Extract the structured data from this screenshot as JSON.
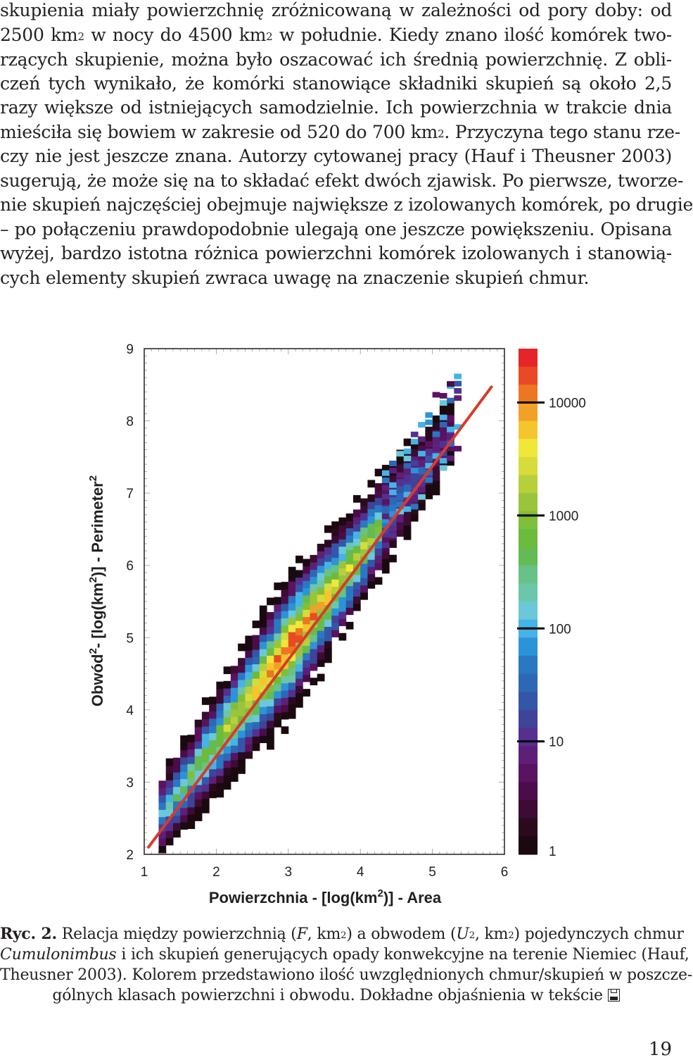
{
  "paragraph": {
    "l1": "skupienia miały powierzchnię zróżnicowaną w zależności od pory doby: od",
    "l2a": "2500 km",
    "l2b": "2",
    "l2c": " w nocy do 4500 km",
    "l2d": "2",
    "l2e": " w południe. Kiedy znano ilość komórek two-",
    "l3": "rzących skupienie, można było oszacować ich średnią powierzchnię. Z obli-",
    "l4": "czeń tych wynikało, że komórki stanowiące składniki skupień są około 2,5",
    "l5": "razy większe od istniejących samodzielnie. Ich powierzchnia w trakcie dnia",
    "l6a": "mieściła się bowiem w zakresie od 520 do 700 km",
    "l6b": "2",
    "l6c": ". Przyczyna tego stanu rze-",
    "l7": "czy nie jest jeszcze znana. Autorzy cytowanej pracy (Hauf i Theusner 2003)",
    "l8": "sugerują, że może się na to składać efekt dwóch zjawisk. Po pierwsze, tworze-",
    "l9": "nie skupień najczęściej obejmuje największe z izolowanych komórek, po drugie",
    "l10": "– po połączeniu prawdopodobnie ulegają one jeszcze powiększeniu. Opisana",
    "l11": "wyżej, bardzo istotna różnica powierzchni komórek izolowanych i stanowią-",
    "l12": "cych elementy skupień zwraca uwagę na znaczenie skupień chmur."
  },
  "chart_data": {
    "type": "heatmap",
    "title": "",
    "xlabel_pre": "Powierzchnia - [log(km",
    "xlabel_sup": "2",
    "xlabel_post": ")] - Area",
    "ylabel_pre": "Obwód",
    "ylabel_sup1": "2",
    "ylabel_mid": "- [log(km",
    "ylabel_sup2": "2",
    "ylabel_post": ")] - Perimeter",
    "ylabel_sup3": "2",
    "xlim": [
      1,
      6
    ],
    "ylim": [
      2,
      9
    ],
    "xticks": [
      "1",
      "2",
      "3",
      "4",
      "5",
      "6"
    ],
    "yticks": [
      "2",
      "3",
      "4",
      "5",
      "6",
      "7",
      "8",
      "9"
    ],
    "fit_line": {
      "x": [
        1.06,
        5.82
      ],
      "y": [
        2.1,
        8.47
      ],
      "color": "#d93a2b"
    },
    "density": {
      "description_of_band": "count of clouds per class of area and perimeter, concentrated along the fit line",
      "cells_x_step": 0.1,
      "cells_y_step": 0.1
    },
    "colorbar": {
      "scale": "log",
      "min": 1,
      "max": 30000,
      "tick_labels": [
        "1",
        "10",
        "100",
        "1000",
        "10000"
      ],
      "tick_values": [
        1,
        10,
        100,
        1000,
        10000
      ],
      "colors": [
        "#1a0a10",
        "#2a0b1e",
        "#3d0c34",
        "#4b0c4a",
        "#591360",
        "#5e1f78",
        "#55308f",
        "#3f4399",
        "#3456a8",
        "#2e67b6",
        "#2a78c3",
        "#2d93d8",
        "#45b3e6",
        "#6ac8d8",
        "#6cc6a9",
        "#68c186",
        "#64ba53",
        "#6dbb3c",
        "#80bf3a",
        "#9ac43c",
        "#b8cf3c",
        "#d6dc38",
        "#f1e73a",
        "#f5c52d",
        "#f3a026",
        "#ed7622",
        "#e94a24",
        "#e4262b"
      ]
    }
  },
  "caption": {
    "label": "Ryc. 2.",
    "t1a": " Relacja między powierzchnią (",
    "t1F": "F",
    "t1b": ", km",
    "t1s1": "2",
    "t1c": ") a obwodem (",
    "t1U": "U",
    "t1s2": "2",
    "t1d": ", km",
    "t1s3": "2",
    "t1e": ") pojedynczych chmur",
    "t2a": "Cumulonimbus",
    "t2b": " i ich skupień generujących opady konwekcyjne na terenie Niemiec (Hauf,",
    "t3": "Theusner 2003). Kolorem przedstawiono ilość uwzględnionych chmur/skupień w poszcze-",
    "t4": "gólnych klasach powierzchni i obwodu. Dokładne objaśnienia w tekście",
    "t4icon": "floppy-disk-icon"
  },
  "page_number": "19"
}
